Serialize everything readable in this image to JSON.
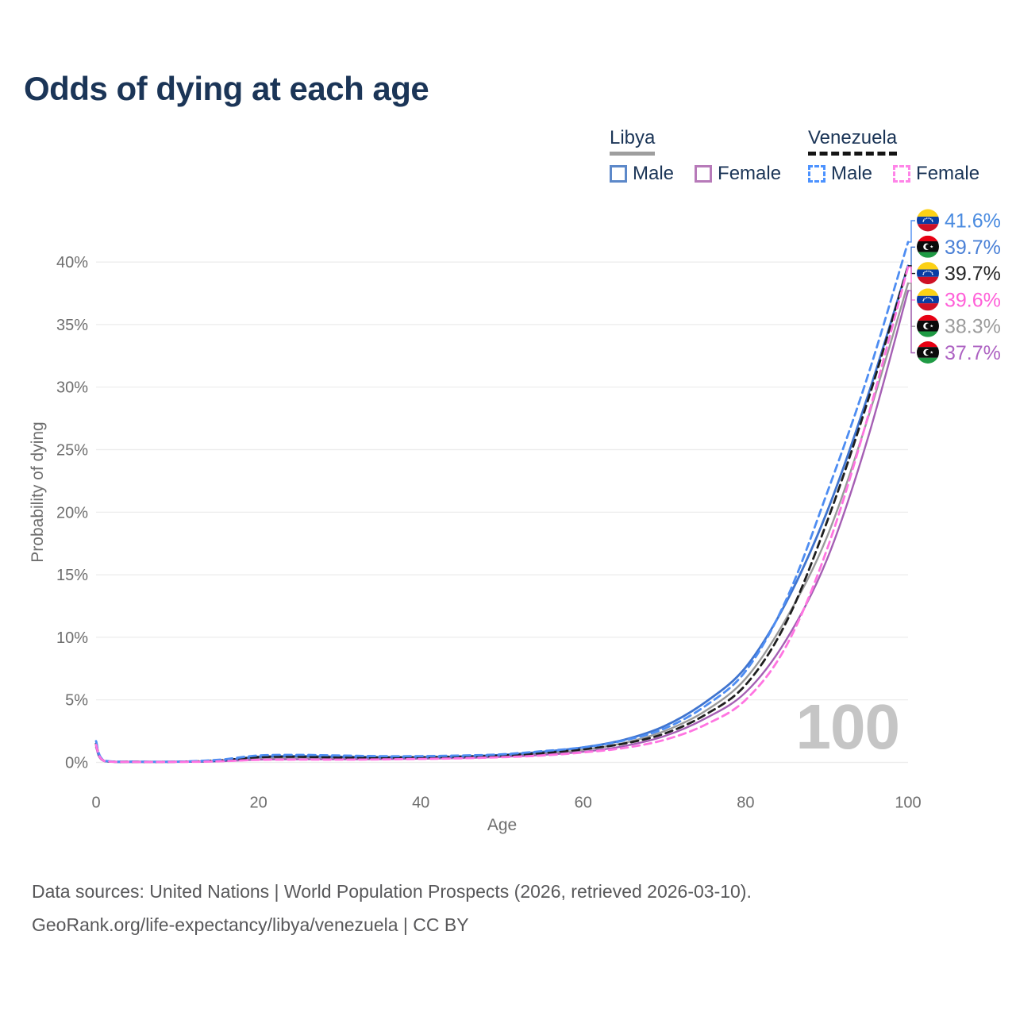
{
  "title": "Odds of dying at each age",
  "watermark": "100",
  "legend": {
    "groups": [
      {
        "country": "Libya",
        "line_style": "solid",
        "underline_color": "#9e9e9e",
        "items": [
          {
            "label": "Male",
            "box_color": "#5c88c9",
            "dashed": false
          },
          {
            "label": "Female",
            "box_color": "#b77ab9",
            "dashed": false
          }
        ]
      },
      {
        "country": "Venezuela",
        "line_style": "dashed",
        "underline_color": "#141414",
        "items": [
          {
            "label": "Male",
            "box_color": "#4c92ff",
            "dashed": true
          },
          {
            "label": "Female",
            "box_color": "#ff84e8",
            "dashed": true
          }
        ]
      }
    ]
  },
  "chart_data": {
    "type": "line",
    "title": "Odds of dying at each age",
    "xlabel": "Age",
    "ylabel": "Probability of dying",
    "xlim": [
      0,
      100
    ],
    "ylim": [
      0,
      43
    ],
    "grid": "horizontal-only",
    "legend_position": "top-right",
    "x_ticks": [
      0,
      20,
      40,
      60,
      80,
      100
    ],
    "y_ticks": [
      "0%",
      "5%",
      "10%",
      "15%",
      "20%",
      "25%",
      "30%",
      "35%",
      "40%"
    ],
    "x": [
      0,
      1,
      5,
      10,
      15,
      20,
      25,
      30,
      35,
      40,
      45,
      50,
      55,
      60,
      65,
      70,
      75,
      80,
      85,
      90,
      95,
      100
    ],
    "z_order": [
      4,
      5,
      1,
      2,
      0,
      3
    ],
    "series": [
      {
        "name": "Venezuela Male",
        "country": "venezuela",
        "sex": "male",
        "color": "#4e8df2",
        "label_color": "#4a8be0",
        "dash": true,
        "width": 2.8,
        "end_label": "41.6%",
        "values": [
          1.7,
          0.15,
          0.06,
          0.06,
          0.2,
          0.55,
          0.6,
          0.55,
          0.5,
          0.5,
          0.55,
          0.65,
          0.9,
          1.2,
          1.75,
          2.7,
          4.5,
          7.3,
          13.0,
          21.5,
          30.8,
          41.6
        ]
      },
      {
        "name": "Libya Male",
        "country": "libya",
        "sex": "male",
        "color": "#3f74cf",
        "label_color": "#4a80d6",
        "dash": false,
        "width": 2.8,
        "end_label": "39.7%",
        "values": [
          1.4,
          0.12,
          0.05,
          0.06,
          0.12,
          0.45,
          0.5,
          0.45,
          0.42,
          0.42,
          0.48,
          0.6,
          0.85,
          1.2,
          1.8,
          2.9,
          4.8,
          7.6,
          12.8,
          20.0,
          29.2,
          39.7
        ]
      },
      {
        "name": "Venezuela (both sexes)",
        "country": "venezuela",
        "sex": "both",
        "color": "#1f1f1f",
        "label_color": "#252525",
        "dash": true,
        "width": 2.8,
        "end_label": "39.7%",
        "values": [
          1.5,
          0.13,
          0.05,
          0.05,
          0.15,
          0.42,
          0.45,
          0.4,
          0.38,
          0.4,
          0.45,
          0.55,
          0.75,
          1.05,
          1.5,
          2.3,
          3.8,
          6.2,
          11.2,
          19.2,
          28.8,
          39.7
        ]
      },
      {
        "name": "Venezuela Female",
        "country": "venezuela",
        "sex": "female",
        "color": "#ff74e1",
        "label_color": "#ff5fd8",
        "dash": true,
        "width": 2.8,
        "end_label": "39.6%",
        "values": [
          1.4,
          0.12,
          0.04,
          0.04,
          0.08,
          0.2,
          0.22,
          0.22,
          0.24,
          0.28,
          0.33,
          0.42,
          0.55,
          0.8,
          1.15,
          1.8,
          3.0,
          5.0,
          9.3,
          17.0,
          27.5,
          39.6
        ]
      },
      {
        "name": "Libya (both sexes)",
        "country": "libya",
        "sex": "both",
        "color": "#9a9a9a",
        "label_color": "#9c9c9c",
        "dash": false,
        "width": 2.4,
        "end_label": "38.3%",
        "values": [
          1.3,
          0.11,
          0.04,
          0.05,
          0.1,
          0.35,
          0.4,
          0.35,
          0.33,
          0.35,
          0.4,
          0.5,
          0.7,
          1.0,
          1.55,
          2.5,
          4.1,
          6.7,
          11.5,
          18.0,
          27.4,
          38.3
        ]
      },
      {
        "name": "Libya Female",
        "country": "libya",
        "sex": "female",
        "color": "#a55fb4",
        "label_color": "#ad62c2",
        "dash": false,
        "width": 2.4,
        "end_label": "37.7%",
        "values": [
          1.2,
          0.1,
          0.03,
          0.04,
          0.08,
          0.22,
          0.25,
          0.25,
          0.26,
          0.3,
          0.35,
          0.45,
          0.6,
          0.85,
          1.3,
          2.1,
          3.5,
          5.6,
          9.8,
          16.2,
          25.8,
          37.7
        ]
      }
    ],
    "flag_colors": {
      "venezuela": {
        "yellow": "#FCD116",
        "blue": "#0A3DA4",
        "red": "#CE1126",
        "stars": "#ffffff"
      },
      "libya": {
        "red": "#E70013",
        "black": "#0b0b0b",
        "green": "#1F9A44",
        "crescent_star": "#ffffff"
      }
    }
  },
  "footer": {
    "line1": "Data sources: United Nations | World Population Prospects (2026, retrieved 2026-03-10).",
    "line2": "GeoRank.org/life-expectancy/libya/venezuela | CC BY"
  }
}
